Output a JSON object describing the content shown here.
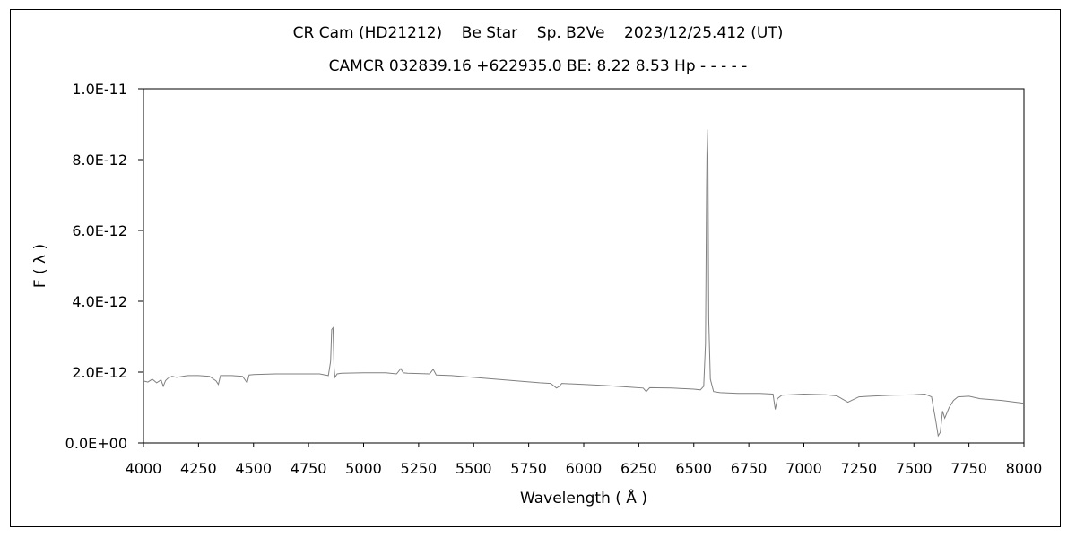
{
  "chart_data": {
    "type": "line",
    "title": "CR Cam (HD21212)    Be Star    Sp. B2Ve    2023/12/25.412 (UT)",
    "subtitle": "CAMCR 032839.16 +622935.0 BE: 8.22 8.53 Hp - - - - -",
    "xlabel": "Wavelength ( Å )",
    "ylabel": "F ( λ )",
    "xlim": [
      4000,
      8000
    ],
    "ylim": [
      0,
      1e-11
    ],
    "grid": false,
    "line_color": "#808080",
    "x_ticks": [
      4000,
      4250,
      4500,
      4750,
      5000,
      5250,
      5500,
      5750,
      6000,
      6250,
      6500,
      6750,
      7000,
      7250,
      7500,
      7750,
      8000
    ],
    "x_tick_labels": [
      "4000",
      "4250",
      "4500",
      "4750",
      "5000",
      "5250",
      "5500",
      "5750",
      "6000",
      "6250",
      "6500",
      "6750",
      "7000",
      "7250",
      "7500",
      "7750",
      "8000"
    ],
    "y_ticks": [
      0,
      2e-12,
      4e-12,
      6e-12,
      8e-12,
      1e-11
    ],
    "y_tick_labels": [
      "0.0E+00",
      "2.0E-12",
      "4.0E-12",
      "6.0E-12",
      "8.0E-12",
      "1.0E-11"
    ],
    "series": [
      {
        "x": [
          4000,
          4020,
          4040,
          4060,
          4080,
          4090,
          4100,
          4110,
          4130,
          4150,
          4200,
          4250,
          4300,
          4330,
          4340,
          4350,
          4400,
          4450,
          4471,
          4480,
          4500,
          4600,
          4700,
          4800,
          4840,
          4850,
          4855,
          4861,
          4866,
          4870,
          4880,
          4900,
          5000,
          5100,
          5150,
          5169,
          5180,
          5200,
          5300,
          5316,
          5330,
          5400,
          5500,
          5600,
          5700,
          5800,
          5850,
          5876,
          5890,
          5900,
          6000,
          6100,
          6200,
          6270,
          6284,
          6300,
          6400,
          6500,
          6530,
          6545,
          6553,
          6558,
          6561,
          6564,
          6568,
          6575,
          6590,
          6620,
          6700,
          6800,
          6860,
          6870,
          6880,
          6900,
          7000,
          7100,
          7150,
          7200,
          7250,
          7300,
          7400,
          7500,
          7550,
          7580,
          7600,
          7610,
          7620,
          7630,
          7640,
          7660,
          7680,
          7700,
          7750,
          7800,
          7900,
          8000
        ],
        "y": [
          1.75e-12,
          1.72e-12,
          1.8e-12,
          1.7e-12,
          1.78e-12,
          1.6e-12,
          1.76e-12,
          1.82e-12,
          1.88e-12,
          1.85e-12,
          1.9e-12,
          1.9e-12,
          1.88e-12,
          1.75e-12,
          1.65e-12,
          1.9e-12,
          1.9e-12,
          1.88e-12,
          1.7e-12,
          1.92e-12,
          1.93e-12,
          1.95e-12,
          1.95e-12,
          1.95e-12,
          1.9e-12,
          2.3e-12,
          3.2e-12,
          3.25e-12,
          2.1e-12,
          1.85e-12,
          1.95e-12,
          1.97e-12,
          1.98e-12,
          1.98e-12,
          1.95e-12,
          2.1e-12,
          1.98e-12,
          1.97e-12,
          1.95e-12,
          2.08e-12,
          1.92e-12,
          1.9e-12,
          1.85e-12,
          1.8e-12,
          1.75e-12,
          1.7e-12,
          1.68e-12,
          1.55e-12,
          1.6e-12,
          1.68e-12,
          1.65e-12,
          1.62e-12,
          1.58e-12,
          1.55e-12,
          1.45e-12,
          1.56e-12,
          1.55e-12,
          1.52e-12,
          1.5e-12,
          1.6e-12,
          2.8e-12,
          7.2e-12,
          8.85e-12,
          8.1e-12,
          3.5e-12,
          1.8e-12,
          1.45e-12,
          1.42e-12,
          1.4e-12,
          1.4e-12,
          1.38e-12,
          9.5e-13,
          1.25e-12,
          1.35e-12,
          1.38e-12,
          1.36e-12,
          1.33e-12,
          1.15e-12,
          1.3e-12,
          1.32e-12,
          1.35e-12,
          1.36e-12,
          1.38e-12,
          1.3e-12,
          6e-13,
          2e-13,
          3e-13,
          9e-13,
          7e-13,
          1e-12,
          1.2e-12,
          1.3e-12,
          1.32e-12,
          1.25e-12,
          1.2e-12,
          1.12e-12
        ]
      }
    ]
  }
}
